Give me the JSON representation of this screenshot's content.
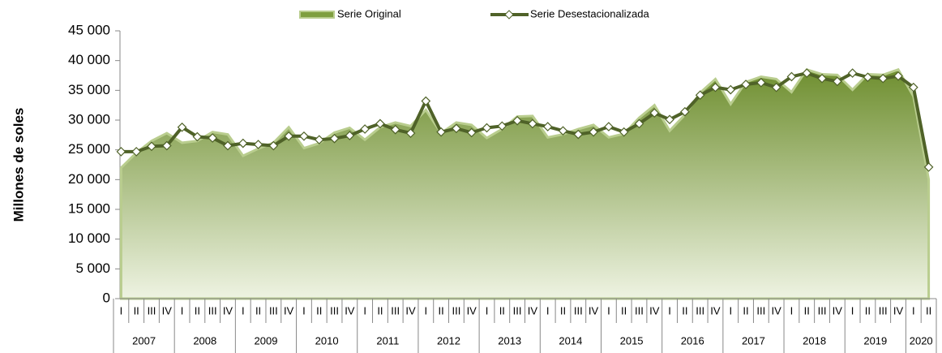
{
  "chart_data": {
    "type": "area-line",
    "y_label": "Millones de soles",
    "categories": [
      "I",
      "II",
      "III",
      "IV",
      "I",
      "II",
      "III",
      "IV",
      "I",
      "II",
      "III",
      "IV",
      "I",
      "II",
      "III",
      "IV",
      "I",
      "II",
      "III",
      "IV",
      "I",
      "II",
      "III",
      "IV",
      "I",
      "II",
      "III",
      "IV",
      "I",
      "II",
      "III",
      "IV",
      "I",
      "II",
      "III",
      "IV",
      "I",
      "II",
      "III",
      "IV",
      "I",
      "II",
      "III",
      "IV",
      "I",
      "II",
      "III",
      "IV",
      "I",
      "II",
      "III",
      "IV",
      "I",
      "II"
    ],
    "years": [
      "2007",
      "2008",
      "2009",
      "2010",
      "2011",
      "2012",
      "2013",
      "2014",
      "2015",
      "2016",
      "2017",
      "2018",
      "2019",
      "2020"
    ],
    "series": [
      {
        "name": "Serie Original",
        "kind": "area",
        "color": "#7f9f3f",
        "values": [
          22000,
          24500,
          26500,
          27800,
          26200,
          26500,
          28000,
          27600,
          24000,
          25200,
          26200,
          28800,
          25300,
          26100,
          27900,
          28700,
          26700,
          28800,
          29600,
          29000,
          31700,
          27800,
          29600,
          29200,
          27000,
          28500,
          30600,
          30700,
          27100,
          27600,
          28500,
          29200,
          27100,
          27700,
          30400,
          32500,
          28200,
          30900,
          34600,
          36900,
          32700,
          36400,
          37300,
          36900,
          34700,
          38500,
          37700,
          37600,
          35100,
          37700,
          37600,
          38500,
          34000,
          20000
        ]
      },
      {
        "name": "Serie Desestacionalizada",
        "kind": "line",
        "color": "#4f6228",
        "values": [
          24700,
          24700,
          25600,
          25700,
          28800,
          27200,
          27000,
          25700,
          26100,
          25900,
          25700,
          27300,
          27300,
          26700,
          26900,
          27400,
          28500,
          29400,
          28400,
          27800,
          33200,
          28000,
          28600,
          27900,
          28700,
          29000,
          29900,
          29400,
          28900,
          28200,
          27600,
          28000,
          28900,
          28000,
          29400,
          31200,
          30100,
          31400,
          34200,
          35500,
          35100,
          36000,
          36300,
          35500,
          37300,
          37900,
          37000,
          36500,
          37900,
          37200,
          37000,
          37400,
          35500,
          22100
        ]
      }
    ],
    "ylim": [
      0,
      45000
    ],
    "yticks": [
      0,
      {
        "value": 5000,
        "label": "5 000"
      },
      {
        "value": 10000,
        "label": "10 000"
      },
      {
        "value": 15000,
        "label": "15 000"
      },
      {
        "value": 20000,
        "label": "20 000"
      },
      {
        "value": 25000,
        "label": "25 000"
      },
      {
        "value": 30000,
        "label": "30 000"
      },
      {
        "value": 35000,
        "label": "35 000"
      },
      {
        "value": 40000,
        "label": "40 000"
      },
      {
        "value": 45000,
        "label": "45 000"
      }
    ]
  }
}
